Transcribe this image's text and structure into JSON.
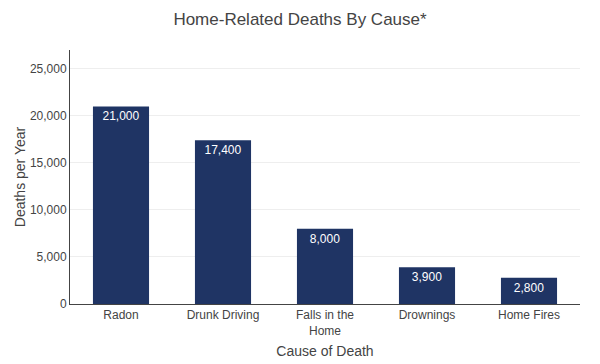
{
  "chart_data": {
    "type": "bar",
    "title": "Home-Related Deaths By Cause*",
    "xlabel": "Cause of Death",
    "ylabel": "Deaths per Year",
    "categories": [
      "Radon",
      "Drunk Driving",
      "Falls in the\nHome",
      "Drownings",
      "Home Fires"
    ],
    "values": [
      21000,
      17400,
      8000,
      3900,
      2800
    ],
    "value_labels": [
      "21,000",
      "17,400",
      "8,000",
      "3,900",
      "2,800"
    ],
    "data_labels": true,
    "color": "#1f3464",
    "ylim": [
      0,
      27000
    ],
    "yticks": [
      0,
      {
        "value": 5000,
        "label": "5,000"
      },
      {
        "value": 10000,
        "label": "10,000"
      },
      {
        "value": 15000,
        "label": "15,000"
      },
      {
        "value": 20000,
        "label": "20,000"
      },
      {
        "value": 25000,
        "label": "25,000"
      }
    ],
    "grid": true
  }
}
